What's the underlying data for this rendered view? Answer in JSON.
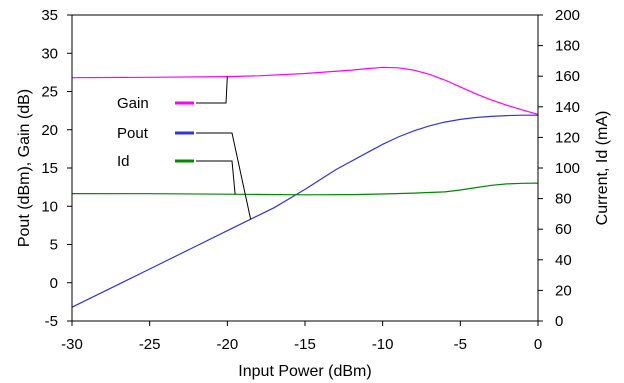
{
  "chart_data": {
    "type": "line",
    "xlabel": "Input Power (dBm)",
    "ylabel_left": "Pout (dBm), Gain (dB)",
    "ylabel_right": "Current, Id (mA)",
    "xlim": [
      -30,
      0
    ],
    "ylim_left": [
      -5,
      35
    ],
    "ylim_right": [
      0,
      200
    ],
    "x_ticks": [
      -30,
      -25,
      -20,
      -15,
      -10,
      -5,
      0
    ],
    "y_left_ticks": [
      -5,
      0,
      5,
      10,
      15,
      20,
      25,
      30,
      35
    ],
    "y_right_ticks": [
      0,
      20,
      40,
      60,
      80,
      100,
      120,
      140,
      160,
      180,
      200
    ],
    "grid": false,
    "legend_placement": "middle-left",
    "series": [
      {
        "name": "Gain",
        "axis": "left",
        "color": "#ff00ff",
        "x": [
          -30,
          -25,
          -20,
          -18,
          -15,
          -12,
          -11,
          -10,
          -9,
          -8,
          -7,
          -6,
          -5,
          -4,
          -3,
          -2,
          -1,
          0
        ],
        "y": [
          26.8,
          26.85,
          26.95,
          27.05,
          27.35,
          27.8,
          28.0,
          28.15,
          28.1,
          27.8,
          27.25,
          26.5,
          25.6,
          24.7,
          23.9,
          23.2,
          22.6,
          22.0
        ]
      },
      {
        "name": "Pout",
        "axis": "left",
        "color": "#3333dd",
        "x": [
          -30,
          -27,
          -25,
          -22,
          -20,
          -17,
          -15,
          -13,
          -11,
          -10,
          -9,
          -8,
          -7,
          -6,
          -5,
          -4,
          -3,
          -2,
          -1,
          0
        ],
        "y": [
          -3.2,
          -0.2,
          1.8,
          4.8,
          6.8,
          9.8,
          12.2,
          14.8,
          17.0,
          18.1,
          19.05,
          19.85,
          20.5,
          21.0,
          21.35,
          21.6,
          21.75,
          21.85,
          21.9,
          21.9
        ]
      },
      {
        "name": "Id",
        "axis": "right",
        "color": "#008800",
        "x": [
          -30,
          -25,
          -20,
          -15,
          -12,
          -10,
          -8,
          -6,
          -5,
          -4,
          -3,
          -2,
          -1,
          0
        ],
        "y": [
          83.3,
          83.2,
          82.9,
          82.5,
          82.6,
          83.0,
          83.6,
          84.4,
          85.6,
          87.2,
          88.7,
          89.6,
          90.0,
          90.1
        ]
      }
    ],
    "legend": [
      {
        "label": "Gain",
        "color": "#ff00ff",
        "callout_to": {
          "x": -20,
          "y": 26.95
        }
      },
      {
        "label": "Pout",
        "color": "#3333dd",
        "callout_to": {
          "x": -18.5,
          "y": 8.3
        }
      },
      {
        "label": "Id",
        "color": "#008800",
        "callout_to": {
          "x": -19.5,
          "y_right": 82.9
        }
      }
    ]
  }
}
